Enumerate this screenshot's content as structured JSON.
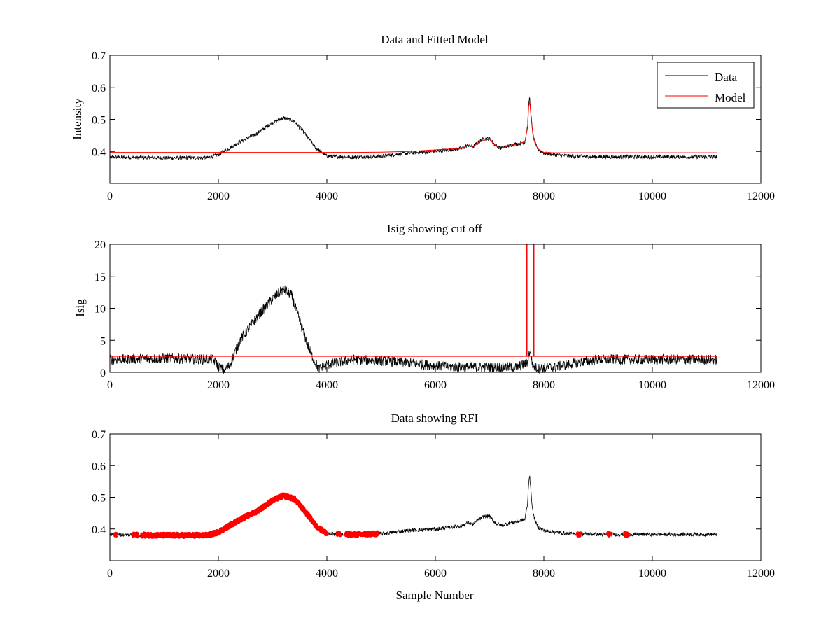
{
  "chart_data": [
    {
      "type": "line",
      "title": "Data and Fitted Model",
      "xlabel": "",
      "ylabel": "Intensity",
      "xlim": [
        0,
        12000
      ],
      "ylim": [
        0.3,
        0.7
      ],
      "xticks": [
        "0",
        "2000",
        "4000",
        "6000",
        "8000",
        "10000",
        "12000"
      ],
      "yticks": [
        "0.4",
        "0.5",
        "0.6",
        "0.7"
      ],
      "grid": false,
      "legend": {
        "position": "top-right",
        "entries": [
          "Data",
          "Model"
        ]
      },
      "series": [
        {
          "name": "Data",
          "color": "#000000",
          "noise": 0.006,
          "x": [
            0,
            1000,
            1800,
            2000,
            2200,
            2400,
            2700,
            3000,
            3200,
            3400,
            3600,
            3800,
            4000,
            4500,
            5000,
            5500,
            6000,
            6500,
            6600,
            6700,
            6800,
            6900,
            7000,
            7100,
            7200,
            7300,
            7400,
            7550,
            7650,
            7700,
            7720,
            7740,
            7760,
            7800,
            7850,
            7900,
            8000,
            8200,
            8500,
            9000,
            10000,
            11200
          ],
          "y": [
            0.382,
            0.38,
            0.38,
            0.39,
            0.41,
            0.43,
            0.455,
            0.49,
            0.505,
            0.495,
            0.455,
            0.41,
            0.385,
            0.382,
            0.385,
            0.395,
            0.4,
            0.41,
            0.42,
            0.415,
            0.43,
            0.44,
            0.44,
            0.42,
            0.41,
            0.415,
            0.42,
            0.425,
            0.43,
            0.48,
            0.55,
            0.57,
            0.52,
            0.45,
            0.42,
            0.405,
            0.395,
            0.39,
            0.385,
            0.383,
            0.383,
            0.383
          ]
        },
        {
          "name": "Model",
          "color": "#ff0000",
          "x": [
            0,
            4500,
            5000,
            5500,
            6000,
            6500,
            6600,
            6700,
            6800,
            6900,
            7000,
            7100,
            7200,
            7300,
            7400,
            7550,
            7650,
            7700,
            7720,
            7740,
            7760,
            7800,
            7850,
            7900,
            8000,
            8200,
            11200
          ],
          "y": [
            0.397,
            0.397,
            0.398,
            0.4,
            0.405,
            0.41,
            0.42,
            0.415,
            0.428,
            0.435,
            0.438,
            0.42,
            0.41,
            0.414,
            0.42,
            0.425,
            0.43,
            0.475,
            0.54,
            0.555,
            0.515,
            0.45,
            0.42,
            0.407,
            0.397,
            0.396,
            0.396
          ]
        }
      ]
    },
    {
      "type": "line",
      "title": "Isig showing cut off",
      "xlabel": "",
      "ylabel": "Isig",
      "xlim": [
        0,
        12000
      ],
      "ylim": [
        0,
        20
      ],
      "xticks": [
        "0",
        "2000",
        "4000",
        "6000",
        "8000",
        "10000",
        "12000"
      ],
      "yticks": [
        "0",
        "5",
        "10",
        "15",
        "20"
      ],
      "grid": false,
      "series": [
        {
          "name": "Isig",
          "color": "#000000",
          "noise": 0.8,
          "x": [
            0,
            1000,
            1900,
            2000,
            2100,
            2200,
            2400,
            2700,
            3000,
            3200,
            3350,
            3500,
            3700,
            3850,
            4000,
            4500,
            5000,
            5500,
            6000,
            6500,
            7000,
            7500,
            7700,
            7740,
            7800,
            7900,
            8200,
            8600,
            9000,
            10000,
            11200
          ],
          "y": [
            2.0,
            2.2,
            2.0,
            1.0,
            0.3,
            1.0,
            5.0,
            8.5,
            11.5,
            13.0,
            12.0,
            8.0,
            3.0,
            0.5,
            1.2,
            2.0,
            1.8,
            1.5,
            1.0,
            0.8,
            0.8,
            0.8,
            1.5,
            3.5,
            1.0,
            0.6,
            0.8,
            1.5,
            2.0,
            2.0,
            2.0
          ]
        },
        {
          "name": "Cut off",
          "color": "#ff0000",
          "x": [
            0,
            7680,
            7680,
            7690,
            7690,
            7810,
            7810,
            7820,
            7820,
            11200
          ],
          "y": [
            2.5,
            2.5,
            20,
            20,
            2.5,
            2.5,
            20,
            20,
            2.5,
            2.5
          ]
        }
      ]
    },
    {
      "type": "line",
      "title": "Data showing RFI",
      "xlabel": "Sample Number",
      "ylabel": "",
      "xlim": [
        0,
        12000
      ],
      "ylim": [
        0.3,
        0.7
      ],
      "xticks": [
        "0",
        "2000",
        "4000",
        "6000",
        "8000",
        "10000",
        "12000"
      ],
      "yticks": [
        "0.4",
        "0.5",
        "0.6",
        "0.7"
      ],
      "grid": false,
      "series": [
        {
          "name": "Data",
          "color": "#000000",
          "noise": 0.006,
          "x": [
            0,
            1000,
            1800,
            2000,
            2200,
            2400,
            2700,
            3000,
            3200,
            3400,
            3600,
            3800,
            4000,
            4500,
            5000,
            5500,
            6000,
            6500,
            6600,
            6700,
            6800,
            6900,
            7000,
            7100,
            7200,
            7300,
            7400,
            7550,
            7650,
            7700,
            7720,
            7740,
            7760,
            7800,
            7850,
            7900,
            8000,
            8200,
            8500,
            9000,
            10000,
            11200
          ],
          "y": [
            0.382,
            0.38,
            0.38,
            0.39,
            0.41,
            0.43,
            0.455,
            0.49,
            0.505,
            0.495,
            0.455,
            0.41,
            0.385,
            0.382,
            0.385,
            0.395,
            0.4,
            0.41,
            0.42,
            0.415,
            0.43,
            0.44,
            0.44,
            0.42,
            0.41,
            0.415,
            0.42,
            0.425,
            0.43,
            0.48,
            0.55,
            0.57,
            0.52,
            0.45,
            0.42,
            0.405,
            0.395,
            0.39,
            0.385,
            0.383,
            0.383,
            0.383
          ]
        },
        {
          "name": "RFI",
          "color": "#ff0000",
          "noise": 0.006,
          "segments": [
            [
              80,
              130
            ],
            [
              420,
              520
            ],
            [
              580,
              4010
            ],
            [
              4180,
              4250
            ],
            [
              4350,
              4950
            ],
            [
              8620,
              8680
            ],
            [
              9180,
              9240
            ],
            [
              9480,
              9560
            ]
          ]
        }
      ]
    }
  ]
}
